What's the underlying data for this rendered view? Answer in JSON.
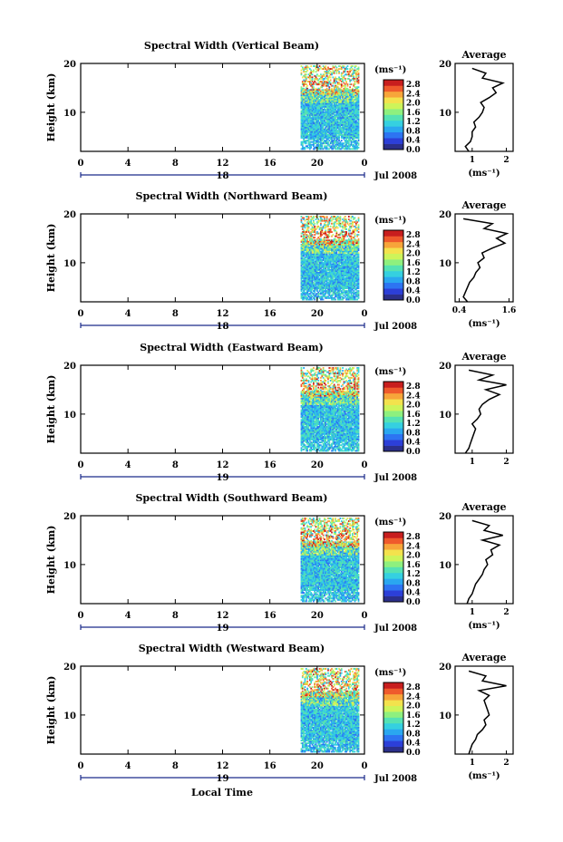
{
  "figure": {
    "xlabel": "Local Time",
    "date_label": "Jul 2008",
    "colorbar_unit": "(ms⁻¹)"
  },
  "colors": {
    "colormap": [
      "#2b2f8a",
      "#2c3fd8",
      "#2d74f2",
      "#2aa7f0",
      "#35d0e0",
      "#55e2b3",
      "#8ef07e",
      "#cdf45a",
      "#f3e24d",
      "#f7a53a",
      "#ef5a2c",
      "#c81e1e"
    ],
    "background": "#ffffff",
    "line": "#000000"
  },
  "chart_data": [
    {
      "type": "heatmap",
      "title": "Spectral Width (Vertical Beam)",
      "ylabel": "Height (km)",
      "xlim": [
        0,
        24
      ],
      "ylim": [
        2,
        20
      ],
      "xticks": [
        "0",
        "4",
        "8",
        "12",
        "16",
        "20",
        "0"
      ],
      "yticks": [
        "10",
        "20"
      ],
      "day_label": "18",
      "colorbar": {
        "range": [
          0,
          3
        ],
        "ticks": [
          "0.0",
          "0.4",
          "0.8",
          "1.2",
          "1.6",
          "2.0",
          "2.4",
          "2.8"
        ]
      },
      "data_window_hours": [
        18.6,
        24
      ],
      "profile": {
        "title": "Average",
        "xlabel": "(ms⁻¹)",
        "xlim": [
          0.5,
          2.2
        ],
        "xticks": [
          "1",
          "2"
        ],
        "yticks": [
          "10",
          "20"
        ],
        "heights": [
          2,
          3,
          4,
          5,
          6,
          7,
          8,
          9,
          10,
          11,
          12,
          13,
          14,
          15,
          16,
          17,
          18,
          19
        ],
        "values": [
          0.9,
          0.8,
          0.95,
          1.0,
          1.0,
          1.1,
          1.05,
          1.2,
          1.3,
          1.35,
          1.25,
          1.5,
          1.7,
          1.6,
          1.9,
          1.3,
          1.4,
          1.0
        ]
      }
    },
    {
      "type": "heatmap",
      "title": "Spectral Width (Northward Beam)",
      "ylabel": "Height (km)",
      "xlim": [
        0,
        24
      ],
      "ylim": [
        2,
        20
      ],
      "xticks": [
        "0",
        "4",
        "8",
        "12",
        "16",
        "20",
        "0"
      ],
      "yticks": [
        "10",
        "20"
      ],
      "day_label": "18",
      "colorbar": {
        "range": [
          0,
          3
        ],
        "ticks": [
          "0.0",
          "0.4",
          "0.8",
          "1.2",
          "1.6",
          "2.0",
          "2.4",
          "2.8"
        ]
      },
      "data_window_hours": [
        18.6,
        24
      ],
      "profile": {
        "title": "Average",
        "xlabel": "(ms⁻¹)",
        "xlim": [
          0.3,
          1.7
        ],
        "xticks": [
          "0.4",
          "1.6"
        ],
        "yticks": [
          "10",
          "20"
        ],
        "heights": [
          2,
          3,
          4,
          5,
          6,
          7,
          8,
          9,
          10,
          11,
          12,
          13,
          14,
          15,
          16,
          17,
          18,
          19
        ],
        "values": [
          0.6,
          0.5,
          0.55,
          0.6,
          0.65,
          0.75,
          0.8,
          0.9,
          0.85,
          1.0,
          0.95,
          1.2,
          1.5,
          1.3,
          1.55,
          1.0,
          1.2,
          0.5
        ]
      }
    },
    {
      "type": "heatmap",
      "title": "Spectral Width (Eastward Beam)",
      "ylabel": "Height (km)",
      "xlim": [
        0,
        24
      ],
      "ylim": [
        2,
        20
      ],
      "xticks": [
        "0",
        "4",
        "8",
        "12",
        "16",
        "20",
        "0"
      ],
      "yticks": [
        "10",
        "20"
      ],
      "day_label": "19",
      "colorbar": {
        "range": [
          0,
          3
        ],
        "ticks": [
          "0.0",
          "0.4",
          "0.8",
          "1.2",
          "1.6",
          "2.0",
          "2.4",
          "2.8"
        ]
      },
      "data_window_hours": [
        18.6,
        24
      ],
      "profile": {
        "title": "Average",
        "xlabel": "",
        "xlim": [
          0.5,
          2.2
        ],
        "xticks": [
          "1",
          "2"
        ],
        "yticks": [
          "10",
          "20"
        ],
        "heights": [
          2,
          3,
          4,
          5,
          6,
          7,
          8,
          9,
          10,
          11,
          12,
          13,
          14,
          15,
          16,
          17,
          18,
          19
        ],
        "values": [
          0.8,
          0.9,
          0.95,
          1.0,
          1.05,
          1.1,
          1.0,
          1.15,
          1.25,
          1.2,
          1.3,
          1.5,
          1.8,
          1.4,
          2.0,
          1.2,
          1.6,
          0.9
        ]
      }
    },
    {
      "type": "heatmap",
      "title": "Spectral Width (Southward Beam)",
      "ylabel": "Height (km)",
      "xlim": [
        0,
        24
      ],
      "ylim": [
        2,
        20
      ],
      "xticks": [
        "0",
        "4",
        "8",
        "12",
        "16",
        "20",
        "0"
      ],
      "yticks": [
        "10",
        "20"
      ],
      "day_label": "19",
      "colorbar": {
        "range": [
          0,
          3
        ],
        "ticks": [
          "0.0",
          "0.4",
          "0.8",
          "1.2",
          "1.6",
          "2.0",
          "2.4",
          "2.8"
        ]
      },
      "data_window_hours": [
        18.6,
        24
      ],
      "profile": {
        "title": "Average",
        "xlabel": "(ms⁻¹)",
        "xlim": [
          0.5,
          2.2
        ],
        "xticks": [
          "1",
          "2"
        ],
        "yticks": [
          "10",
          "20"
        ],
        "heights": [
          2,
          3,
          4,
          5,
          6,
          7,
          8,
          9,
          10,
          11,
          12,
          13,
          14,
          15,
          16,
          17,
          18,
          19
        ],
        "values": [
          0.85,
          0.9,
          1.0,
          1.05,
          1.1,
          1.2,
          1.3,
          1.35,
          1.45,
          1.4,
          1.6,
          1.55,
          1.8,
          1.3,
          1.9,
          1.35,
          1.5,
          1.0
        ]
      }
    },
    {
      "type": "heatmap",
      "title": "Spectral Width (Westward Beam)",
      "ylabel": "Height (km)",
      "xlim": [
        0,
        24
      ],
      "ylim": [
        2,
        20
      ],
      "xticks": [
        "0",
        "4",
        "8",
        "12",
        "16",
        "20",
        "0"
      ],
      "yticks": [
        "10",
        "20"
      ],
      "day_label": "19",
      "colorbar": {
        "range": [
          0,
          3
        ],
        "ticks": [
          "0.0",
          "0.4",
          "0.8",
          "1.2",
          "1.6",
          "2.0",
          "2.4",
          "2.8"
        ]
      },
      "data_window_hours": [
        18.6,
        24
      ],
      "profile": {
        "title": "Average",
        "xlabel": "(ms⁻¹)",
        "xlim": [
          0.5,
          2.2
        ],
        "xticks": [
          "1",
          "2"
        ],
        "yticks": [
          "10",
          "20"
        ],
        "heights": [
          2,
          3,
          4,
          5,
          6,
          7,
          8,
          9,
          10,
          11,
          12,
          13,
          14,
          15,
          16,
          17,
          18,
          19
        ],
        "values": [
          0.9,
          0.95,
          1.0,
          1.1,
          1.15,
          1.3,
          1.4,
          1.35,
          1.5,
          1.45,
          1.4,
          1.35,
          1.5,
          1.2,
          2.0,
          1.3,
          1.4,
          0.9
        ]
      }
    }
  ]
}
